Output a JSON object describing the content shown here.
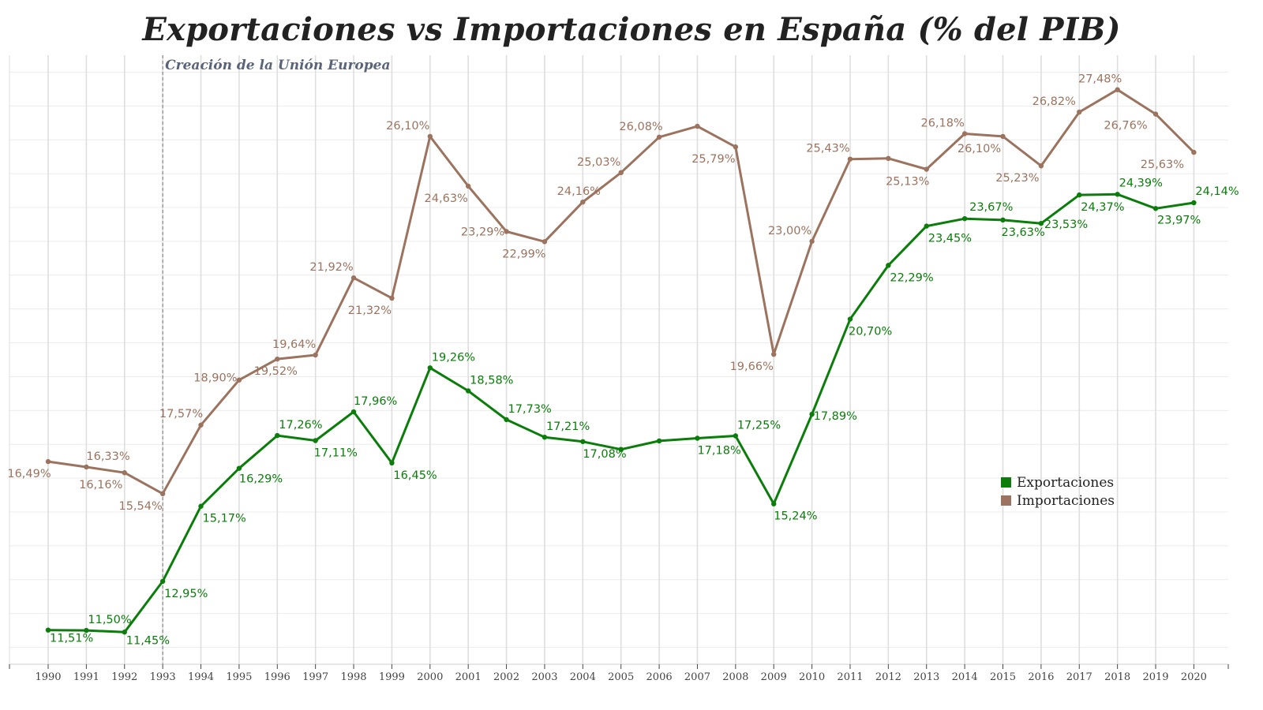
{
  "chart_data": {
    "type": "line",
    "title": "Exportaciones vs Importaciones en España (% del PIB)",
    "xlabel": "",
    "ylabel": "",
    "categories": [
      "1990",
      "1991",
      "1992",
      "1993",
      "1994",
      "1995",
      "1996",
      "1997",
      "1998",
      "1999",
      "2000",
      "2001",
      "2002",
      "2003",
      "2004",
      "2005",
      "2006",
      "2007",
      "2008",
      "2009",
      "2010",
      "2011",
      "2012",
      "2013",
      "2014",
      "2015",
      "2016",
      "2017",
      "2018",
      "2019",
      "2020"
    ],
    "ylim": [
      10.5,
      28.5
    ],
    "grid": true,
    "legend_position": "bottom-right",
    "annotation": {
      "text": "Creación de la Unión Europea",
      "x": "1993"
    },
    "series": [
      {
        "name": "Exportaciones",
        "color": "#0a7d0a",
        "values": [
          11.51,
          11.5,
          11.45,
          12.95,
          15.17,
          16.29,
          17.26,
          17.11,
          17.96,
          16.45,
          19.26,
          18.58,
          17.73,
          17.21,
          17.08,
          16.85,
          17.1,
          17.18,
          17.25,
          15.24,
          17.89,
          20.7,
          22.29,
          23.45,
          23.67,
          23.63,
          23.53,
          24.37,
          24.39,
          23.97,
          24.14
        ],
        "labels": [
          "11,51%",
          "11,50%",
          "11,45%",
          "12,95%",
          "15,17%",
          "16,29%",
          "17,26%",
          "17,11%",
          "17,96%",
          "16,45%",
          "19,26%",
          "18,58%",
          "17,73%",
          "17,21%",
          "17,08%",
          "",
          "",
          "17,18%",
          "17,25%",
          "15,24%",
          "17,89%",
          "20,70%",
          "22,29%",
          "23,45%",
          "23,67%",
          "23,63%",
          "23,53%",
          "24,37%",
          "24,39%",
          "23,97%",
          "24,14%"
        ]
      },
      {
        "name": "Importaciones",
        "color": "#9b735e",
        "values": [
          16.49,
          16.33,
          16.16,
          15.54,
          17.57,
          18.9,
          19.52,
          19.64,
          21.92,
          21.32,
          26.1,
          24.63,
          23.29,
          22.99,
          24.16,
          25.03,
          26.08,
          26.4,
          25.79,
          19.66,
          23.0,
          25.43,
          25.45,
          25.13,
          26.18,
          26.1,
          25.23,
          26.82,
          27.48,
          26.76,
          25.63
        ],
        "labels": [
          "16,49%",
          "16,33%",
          "16,16%",
          "15,54%",
          "17,57%",
          "18,90%",
          "19,52%",
          "19,64%",
          "21,92%",
          "21,32%",
          "26,10%",
          "24,63%",
          "23,29%",
          "22,99%",
          "24,16%",
          "25,03%",
          "26,08%",
          "",
          "25,79%",
          "19,66%",
          "23,00%",
          "25,43%",
          "",
          "25,13%",
          "26,18%",
          "26,10%",
          "25,23%",
          "26,82%",
          "27,48%",
          "26,76%",
          "25,63%"
        ]
      }
    ]
  }
}
